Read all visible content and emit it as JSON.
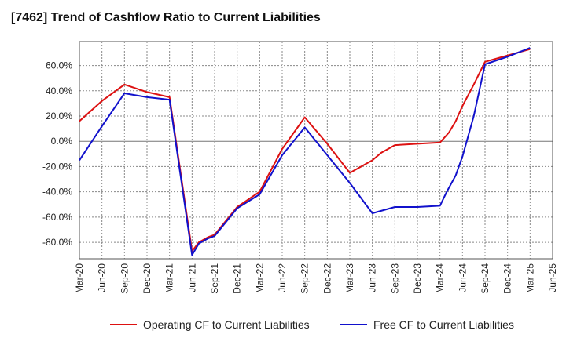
{
  "chart_data": {
    "type": "line",
    "title": "[7462]  Trend of Cashflow Ratio to Current Liabilities",
    "xlabel": "",
    "ylabel": "",
    "x_ticks": [
      "Mar-20",
      "Jun-20",
      "Sep-20",
      "Dec-20",
      "Mar-21",
      "Jun-21",
      "Sep-21",
      "Dec-21",
      "Mar-22",
      "Jun-22",
      "Sep-22",
      "Dec-22",
      "Mar-23",
      "Jun-23",
      "Sep-23",
      "Dec-23",
      "Mar-24",
      "Jun-24",
      "Sep-24",
      "Dec-24",
      "Mar-25",
      "Jun-25"
    ],
    "y_ticks": [
      "60.0%",
      "40.0%",
      "20.0%",
      "0.0%",
      "-20.0%",
      "-40.0%",
      "-60.0%",
      "-80.0%"
    ],
    "ylim": [
      -93,
      79
    ],
    "grid": true,
    "legend_position": "bottom",
    "series": [
      {
        "name": "Operating CF to Current Liabilities",
        "color": "#dd1111",
        "points": [
          [
            0,
            16
          ],
          [
            1,
            32
          ],
          [
            2,
            45
          ],
          [
            3,
            39
          ],
          [
            4,
            35
          ],
          [
            5,
            -87
          ],
          [
            5.3,
            -80
          ],
          [
            5.7,
            -76
          ],
          [
            6,
            -74
          ],
          [
            7,
            -52
          ],
          [
            8,
            -40
          ],
          [
            9,
            -6
          ],
          [
            10,
            19
          ],
          [
            11,
            -2
          ],
          [
            12,
            -25
          ],
          [
            13,
            -15
          ],
          [
            13.4,
            -9
          ],
          [
            14,
            -3
          ],
          [
            15,
            -2
          ],
          [
            16,
            -1
          ],
          [
            16.4,
            7
          ],
          [
            16.7,
            16
          ],
          [
            17,
            28
          ],
          [
            17.5,
            45
          ],
          [
            18,
            63
          ],
          [
            19,
            68
          ],
          [
            20,
            73
          ]
        ]
      },
      {
        "name": "Free CF to Current Liabilities",
        "color": "#1111cc",
        "points": [
          [
            0,
            -15
          ],
          [
            1,
            12
          ],
          [
            2,
            38
          ],
          [
            3,
            35
          ],
          [
            4,
            33
          ],
          [
            5,
            -90
          ],
          [
            5.3,
            -81
          ],
          [
            5.7,
            -77
          ],
          [
            6,
            -75
          ],
          [
            7,
            -53
          ],
          [
            8,
            -42
          ],
          [
            9,
            -11
          ],
          [
            10,
            11
          ],
          [
            11,
            -11
          ],
          [
            12,
            -33
          ],
          [
            13,
            -57
          ],
          [
            14,
            -52
          ],
          [
            15,
            -52
          ],
          [
            16,
            -51
          ],
          [
            16.3,
            -40
          ],
          [
            16.7,
            -27
          ],
          [
            17,
            -12
          ],
          [
            17.5,
            20
          ],
          [
            18,
            61
          ],
          [
            19,
            67
          ],
          [
            20,
            74
          ]
        ]
      }
    ]
  }
}
